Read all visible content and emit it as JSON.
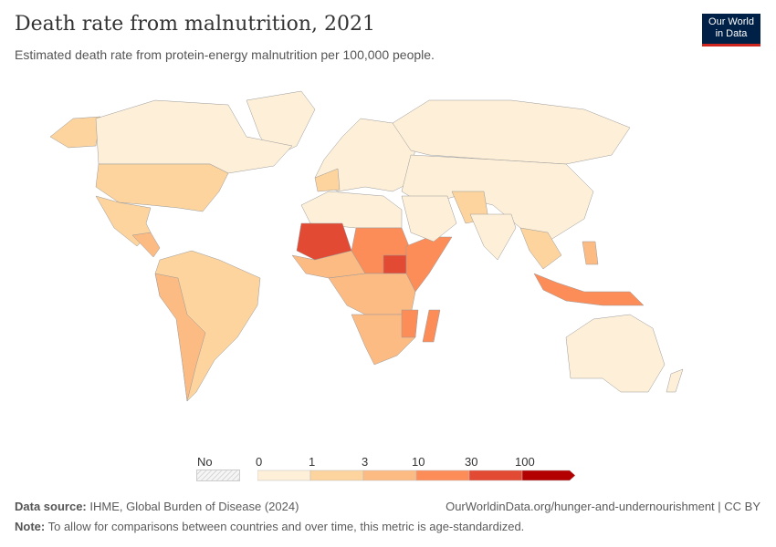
{
  "header": {
    "title": "Death rate from malnutrition, 2021",
    "subtitle": "Estimated death rate from protein-energy malnutrition per 100,000 people.",
    "logo_line1": "Our World",
    "logo_line2": "in Data"
  },
  "legend": {
    "no_data": "No data",
    "ticks": [
      "0",
      "1",
      "3",
      "10",
      "30",
      "100"
    ],
    "colors": [
      "#feefd8",
      "#fdd49e",
      "#fdbb84",
      "#fc8d59",
      "#e34a33",
      "#b30000"
    ],
    "no_data_pattern": "hatched-gray"
  },
  "footer": {
    "source_label": "Data source:",
    "source": "IHME, Global Burden of Disease (2024)",
    "url": "OurWorldinData.org/hunger-and-undernourishment | CC BY",
    "note_label": "Note:",
    "note": "To allow for comparisons between countries and over time, this metric is age-standardized."
  }
}
